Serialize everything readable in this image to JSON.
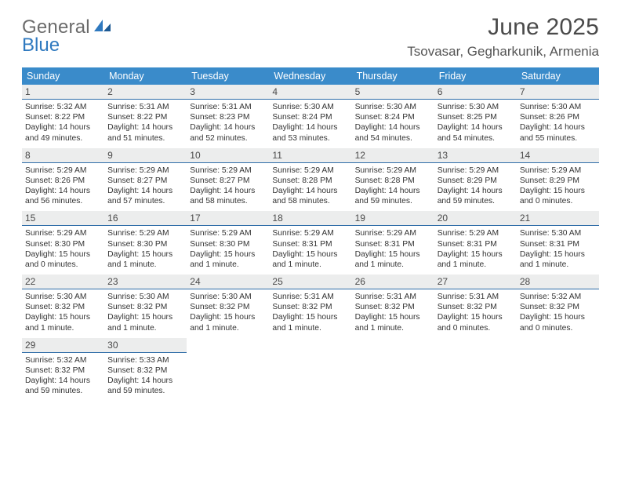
{
  "brand": {
    "word1": "General",
    "word2": "Blue",
    "word1_color": "#6b6b6b",
    "word2_color": "#2f79bf"
  },
  "title": "June 2025",
  "location": "Tsovasar, Gegharkunik, Armenia",
  "typography": {
    "title_fontsize_pt": 22,
    "location_fontsize_pt": 13,
    "header_fontsize_pt": 9.5,
    "body_fontsize_pt": 7.7
  },
  "colors": {
    "page_bg": "#ffffff",
    "header_bg": "#3a8bca",
    "header_text": "#ffffff",
    "daynum_bg": "#eceded",
    "daynum_border": "#2f6da8",
    "body_text": "#333333",
    "title_text": "#4a4a4a"
  },
  "calendar": {
    "type": "table",
    "columns": [
      "Sunday",
      "Monday",
      "Tuesday",
      "Wednesday",
      "Thursday",
      "Friday",
      "Saturday"
    ],
    "weeks": [
      [
        {
          "n": 1,
          "sr": "5:32 AM",
          "ss": "8:22 PM",
          "dl": "14 hours and 49 minutes."
        },
        {
          "n": 2,
          "sr": "5:31 AM",
          "ss": "8:22 PM",
          "dl": "14 hours and 51 minutes."
        },
        {
          "n": 3,
          "sr": "5:31 AM",
          "ss": "8:23 PM",
          "dl": "14 hours and 52 minutes."
        },
        {
          "n": 4,
          "sr": "5:30 AM",
          "ss": "8:24 PM",
          "dl": "14 hours and 53 minutes."
        },
        {
          "n": 5,
          "sr": "5:30 AM",
          "ss": "8:24 PM",
          "dl": "14 hours and 54 minutes."
        },
        {
          "n": 6,
          "sr": "5:30 AM",
          "ss": "8:25 PM",
          "dl": "14 hours and 54 minutes."
        },
        {
          "n": 7,
          "sr": "5:30 AM",
          "ss": "8:26 PM",
          "dl": "14 hours and 55 minutes."
        }
      ],
      [
        {
          "n": 8,
          "sr": "5:29 AM",
          "ss": "8:26 PM",
          "dl": "14 hours and 56 minutes."
        },
        {
          "n": 9,
          "sr": "5:29 AM",
          "ss": "8:27 PM",
          "dl": "14 hours and 57 minutes."
        },
        {
          "n": 10,
          "sr": "5:29 AM",
          "ss": "8:27 PM",
          "dl": "14 hours and 58 minutes."
        },
        {
          "n": 11,
          "sr": "5:29 AM",
          "ss": "8:28 PM",
          "dl": "14 hours and 58 minutes."
        },
        {
          "n": 12,
          "sr": "5:29 AM",
          "ss": "8:28 PM",
          "dl": "14 hours and 59 minutes."
        },
        {
          "n": 13,
          "sr": "5:29 AM",
          "ss": "8:29 PM",
          "dl": "14 hours and 59 minutes."
        },
        {
          "n": 14,
          "sr": "5:29 AM",
          "ss": "8:29 PM",
          "dl": "15 hours and 0 minutes."
        }
      ],
      [
        {
          "n": 15,
          "sr": "5:29 AM",
          "ss": "8:30 PM",
          "dl": "15 hours and 0 minutes."
        },
        {
          "n": 16,
          "sr": "5:29 AM",
          "ss": "8:30 PM",
          "dl": "15 hours and 1 minute."
        },
        {
          "n": 17,
          "sr": "5:29 AM",
          "ss": "8:30 PM",
          "dl": "15 hours and 1 minute."
        },
        {
          "n": 18,
          "sr": "5:29 AM",
          "ss": "8:31 PM",
          "dl": "15 hours and 1 minute."
        },
        {
          "n": 19,
          "sr": "5:29 AM",
          "ss": "8:31 PM",
          "dl": "15 hours and 1 minute."
        },
        {
          "n": 20,
          "sr": "5:29 AM",
          "ss": "8:31 PM",
          "dl": "15 hours and 1 minute."
        },
        {
          "n": 21,
          "sr": "5:30 AM",
          "ss": "8:31 PM",
          "dl": "15 hours and 1 minute."
        }
      ],
      [
        {
          "n": 22,
          "sr": "5:30 AM",
          "ss": "8:32 PM",
          "dl": "15 hours and 1 minute."
        },
        {
          "n": 23,
          "sr": "5:30 AM",
          "ss": "8:32 PM",
          "dl": "15 hours and 1 minute."
        },
        {
          "n": 24,
          "sr": "5:30 AM",
          "ss": "8:32 PM",
          "dl": "15 hours and 1 minute."
        },
        {
          "n": 25,
          "sr": "5:31 AM",
          "ss": "8:32 PM",
          "dl": "15 hours and 1 minute."
        },
        {
          "n": 26,
          "sr": "5:31 AM",
          "ss": "8:32 PM",
          "dl": "15 hours and 1 minute."
        },
        {
          "n": 27,
          "sr": "5:31 AM",
          "ss": "8:32 PM",
          "dl": "15 hours and 0 minutes."
        },
        {
          "n": 28,
          "sr": "5:32 AM",
          "ss": "8:32 PM",
          "dl": "15 hours and 0 minutes."
        }
      ],
      [
        {
          "n": 29,
          "sr": "5:32 AM",
          "ss": "8:32 PM",
          "dl": "14 hours and 59 minutes."
        },
        {
          "n": 30,
          "sr": "5:33 AM",
          "ss": "8:32 PM",
          "dl": "14 hours and 59 minutes."
        },
        null,
        null,
        null,
        null,
        null
      ]
    ],
    "labels": {
      "sunrise": "Sunrise:",
      "sunset": "Sunset:",
      "daylight": "Daylight:"
    }
  }
}
